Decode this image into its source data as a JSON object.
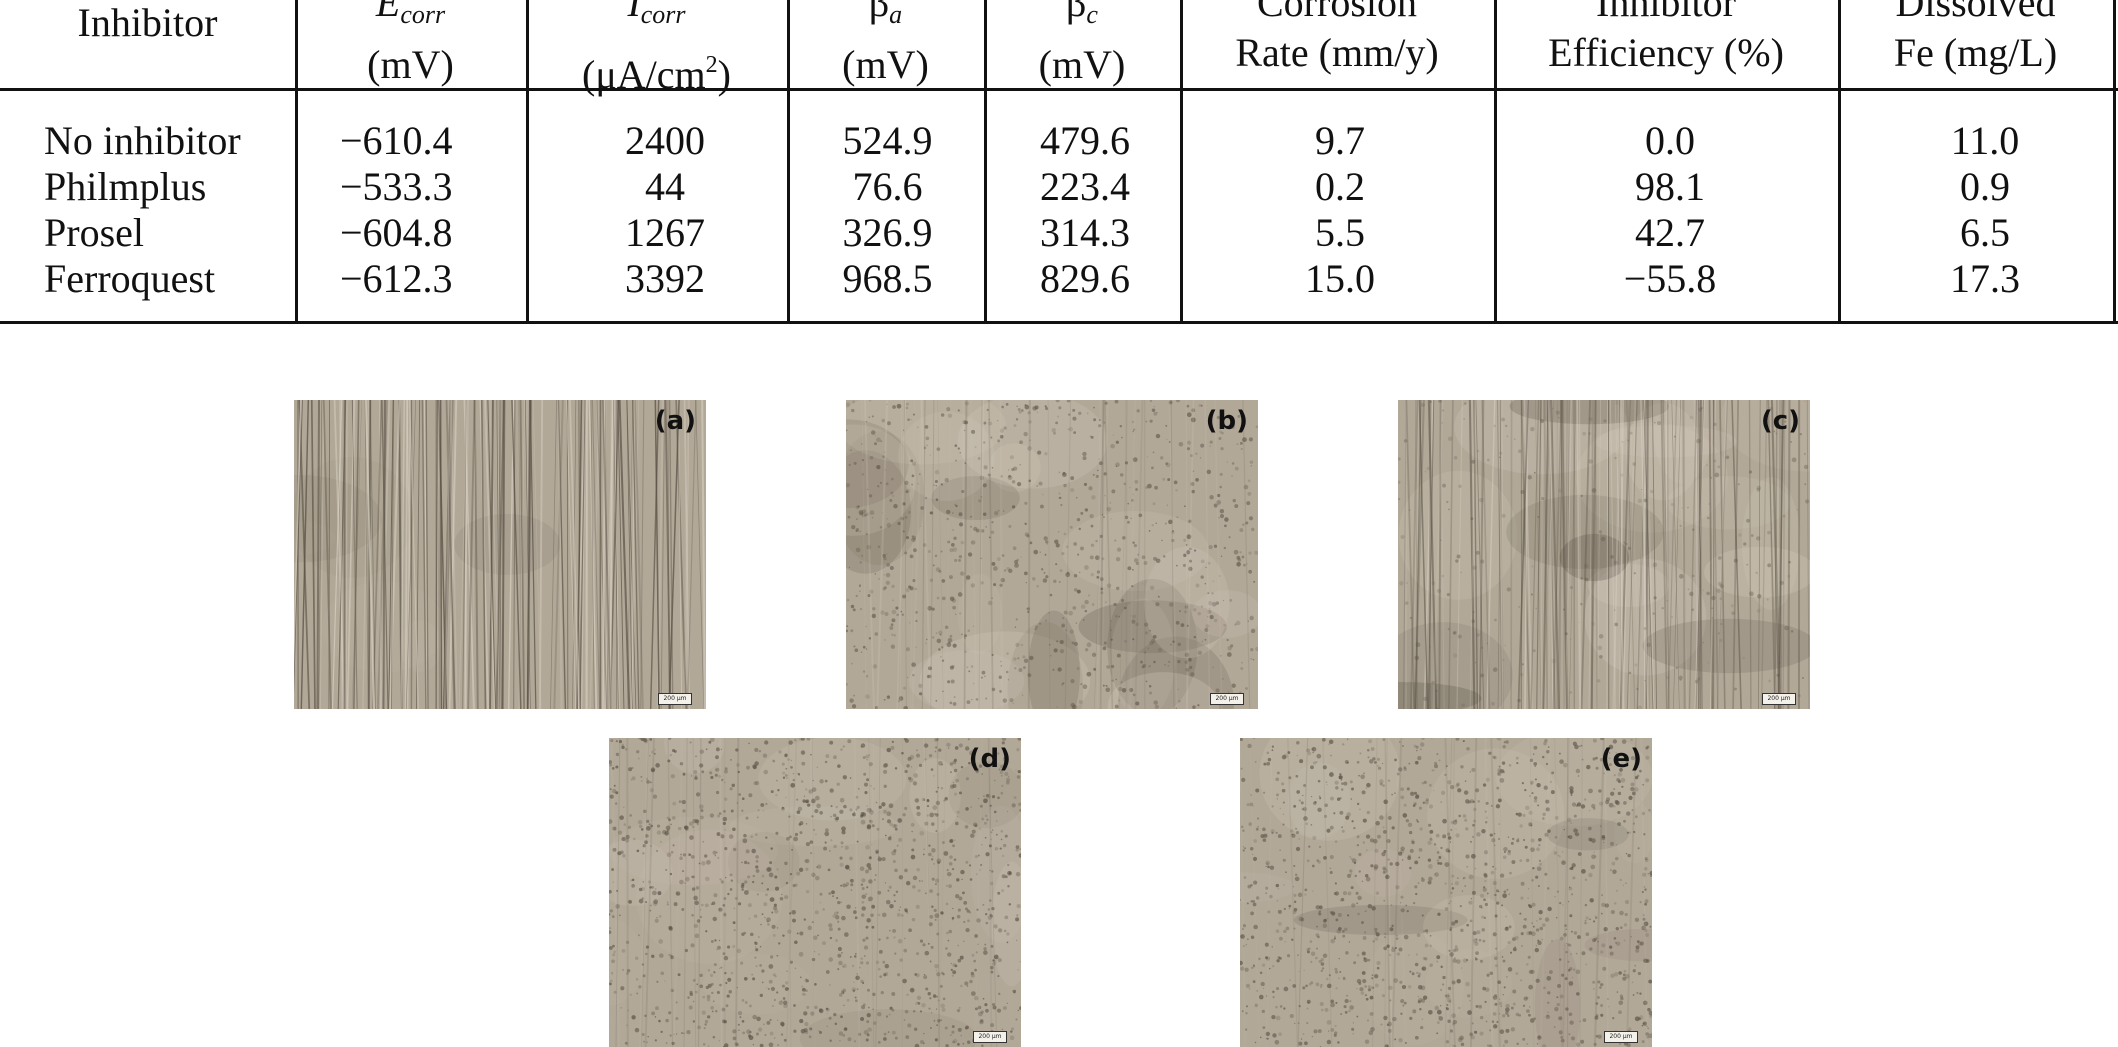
{
  "table": {
    "headers": [
      {
        "line1": "Inhibitor",
        "line2": ""
      },
      {
        "sym": "E",
        "sub": "corr",
        "line2": "(mV)"
      },
      {
        "sym": "I",
        "sub": "corr",
        "line2_pre": "(μA/cm",
        "line2_sup": "2",
        "line2_post": ")"
      },
      {
        "sym": "β",
        "sub": "a",
        "line2": "(mV)"
      },
      {
        "sym": "β",
        "sub": "c",
        "line2": "(mV)"
      },
      {
        "line1": "Corrosion",
        "line2": "Rate (mm/y)"
      },
      {
        "line1": "Inhibitor",
        "line2": "Efficiency (%)"
      },
      {
        "line1": "Dissolved",
        "line2": "Fe (mg/L)"
      }
    ],
    "rows": [
      [
        "No inhibitor",
        "−610.4",
        "2400",
        "524.9",
        "479.6",
        "9.7",
        "0.0",
        "11.0"
      ],
      [
        "Philmplus",
        "−533.3",
        "44",
        "76.6",
        "223.4",
        "0.2",
        "98.1",
        "0.9"
      ],
      [
        "Prosel",
        "−604.8",
        "1267",
        "326.9",
        "314.3",
        "5.5",
        "42.7",
        "6.5"
      ],
      [
        "Ferroquest",
        "−612.3",
        "3392",
        "968.5",
        "829.6",
        "15.0",
        "−55.8",
        "17.3"
      ]
    ]
  },
  "micrographs": [
    {
      "label": "(a)",
      "scale": "200 μm",
      "texture": "polished-scratches"
    },
    {
      "label": "(b)",
      "scale": "200 μm",
      "texture": "mottled-pitted"
    },
    {
      "label": "(c)",
      "scale": "200 μm",
      "texture": "scratched-mottled"
    },
    {
      "label": "(d)",
      "scale": "200 μm",
      "texture": "pitted"
    },
    {
      "label": "(e)",
      "scale": "200 μm",
      "texture": "pitted"
    }
  ],
  "colors": {
    "ink": "#111111",
    "photo_base": "#b2a898",
    "photo_dark": "#5a5246",
    "photo_light": "#d8d0c2"
  }
}
